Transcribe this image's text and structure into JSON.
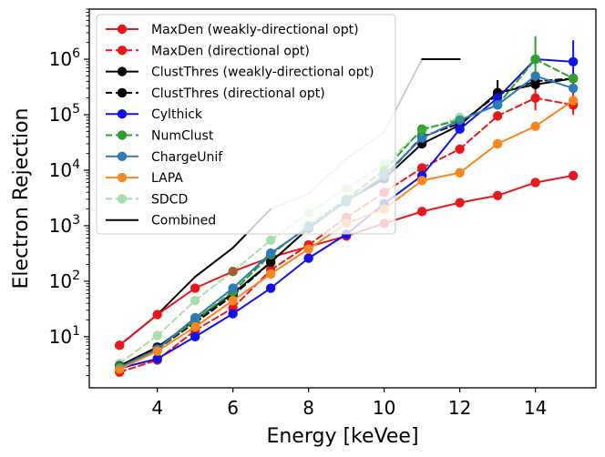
{
  "chart_data": {
    "type": "line",
    "xlabel": "Energy [keVee]",
    "ylabel": "Electron Rejection",
    "xlim": [
      2.2,
      15.6
    ],
    "ylim": [
      1.2,
      8000000
    ],
    "yscale": "log",
    "xticks": [
      4,
      6,
      8,
      10,
      12,
      14
    ],
    "yticks": [
      {
        "value": 10,
        "base": "10",
        "exp": "1"
      },
      {
        "value": 100,
        "base": "10",
        "exp": "2"
      },
      {
        "value": 1000,
        "base": "10",
        "exp": "3"
      },
      {
        "value": 10000,
        "base": "10",
        "exp": "4"
      },
      {
        "value": 100000,
        "base": "10",
        "exp": "5"
      },
      {
        "value": 1000000,
        "base": "10",
        "exp": "6"
      }
    ],
    "legend_position": "upper-left",
    "series": [
      {
        "name": "MaxDen (weakly-directional opt)",
        "color": "#e8171c",
        "dash": "solid",
        "marker": true,
        "opacity": 1,
        "x": [
          3,
          4,
          5,
          6,
          7,
          8,
          9,
          10,
          11,
          12,
          13,
          14,
          15
        ],
        "y": [
          7,
          25,
          75,
          150,
          270,
          420,
          650,
          1100,
          1800,
          2600,
          3500,
          6000,
          8000
        ]
      },
      {
        "name": "MaxDen (directional opt)",
        "color": "#e8171c",
        "dash": "dashed",
        "marker": true,
        "opacity": 1,
        "x": [
          3,
          4,
          5,
          6,
          7,
          8,
          9,
          10,
          11,
          12,
          13,
          14,
          15
        ],
        "y": [
          2.3,
          3.8,
          13,
          33,
          160,
          450,
          1400,
          4000,
          11000,
          24000,
          95000,
          200000,
          150000
        ],
        "err": [
          [
            15,
            100000,
            400000
          ],
          [
            14,
            120000,
            350000
          ]
        ]
      },
      {
        "name": "ClustThres (weakly-directional opt)",
        "color": "#000000",
        "dash": "solid",
        "marker": true,
        "opacity": 1,
        "x": [
          3,
          4,
          5,
          6,
          7,
          8,
          9,
          10,
          11,
          12,
          13,
          14,
          15
        ],
        "y": [
          3,
          6.5,
          20,
          60,
          220,
          900,
          2800,
          7000,
          30000,
          65000,
          250000,
          350000,
          450000
        ],
        "err": [
          [
            13,
            150000,
            420000
          ]
        ]
      },
      {
        "name": "ClustThres (directional opt)",
        "color": "#000000",
        "dash": "dashed",
        "marker": true,
        "opacity": 1,
        "x": [
          3,
          4,
          5,
          6,
          7,
          8,
          9,
          10,
          11,
          12,
          13,
          14,
          15
        ],
        "y": [
          2.7,
          6,
          18,
          55,
          220,
          900,
          2800,
          7500,
          40000,
          70000,
          230000,
          400000,
          450000
        ]
      },
      {
        "name": "Cylthick",
        "color": "#1111e8",
        "dash": "solid",
        "marker": true,
        "opacity": 1,
        "x": [
          3,
          4,
          5,
          6,
          7,
          8,
          9,
          10,
          11,
          12,
          13,
          14,
          15
        ],
        "y": [
          2.7,
          4,
          10,
          26,
          75,
          260,
          700,
          2500,
          8000,
          55000,
          200000,
          1000000,
          900000
        ],
        "err": [
          [
            15,
            400000,
            2200000
          ]
        ]
      },
      {
        "name": "NumClust",
        "color": "#2ca02c",
        "dash": "dashed",
        "marker": true,
        "opacity": 1,
        "x": [
          3,
          4,
          5,
          6,
          7,
          8,
          9,
          10,
          11,
          12,
          13,
          14,
          15
        ],
        "y": [
          2.7,
          6,
          20,
          65,
          300,
          1000,
          3000,
          10000,
          55000,
          80000,
          150000,
          1000000,
          450000
        ],
        "err": [
          [
            14,
            400000,
            2600000
          ]
        ]
      },
      {
        "name": "ChargeUnif",
        "color": "#2e7ab8",
        "dash": "solid",
        "marker": true,
        "opacity": 1,
        "x": [
          3,
          4,
          5,
          6,
          7,
          8,
          9,
          10,
          11,
          12,
          13,
          14,
          15
        ],
        "y": [
          2.8,
          6,
          22,
          75,
          320,
          950,
          2700,
          8000,
          38000,
          80000,
          150000,
          500000,
          300000
        ]
      },
      {
        "name": "LAPA",
        "color": "#f7871e",
        "dash": "solid",
        "marker": true,
        "opacity": 1,
        "x": [
          3,
          4,
          5,
          6,
          7,
          8,
          9,
          10,
          11,
          12,
          13,
          14,
          15
        ],
        "y": [
          2.6,
          5.5,
          15,
          45,
          135,
          380,
          1100,
          2000,
          6500,
          9000,
          30000,
          62000,
          180000
        ]
      },
      {
        "name": "SDCD",
        "color": "#4ab84a",
        "dash": "dashed",
        "marker": true,
        "opacity": 0.45,
        "x": [
          3,
          4,
          5,
          6,
          7,
          8,
          9,
          10,
          11,
          12
        ],
        "y": [
          3.3,
          10.5,
          45,
          150,
          550,
          1700,
          4700,
          13000,
          50000,
          90000
        ]
      },
      {
        "name": "Combined",
        "color": "#000000",
        "dash": "solid",
        "marker": false,
        "opacity": 1,
        "x": [
          3,
          4,
          5,
          6,
          7,
          8,
          9,
          10,
          11,
          12
        ],
        "y": [
          7,
          25,
          120,
          400,
          2000,
          3800,
          16000,
          48000,
          1000000,
          1000000
        ],
        "fade": [
          {
            "from": 7,
            "to": 8,
            "opacity": 0.2
          },
          {
            "from": 8,
            "to": 9,
            "opacity": 0.2
          },
          {
            "from": 9,
            "to": 10,
            "opacity": 0.2
          },
          {
            "from": 10,
            "to": 11,
            "opacity": 0.2
          }
        ]
      }
    ]
  }
}
